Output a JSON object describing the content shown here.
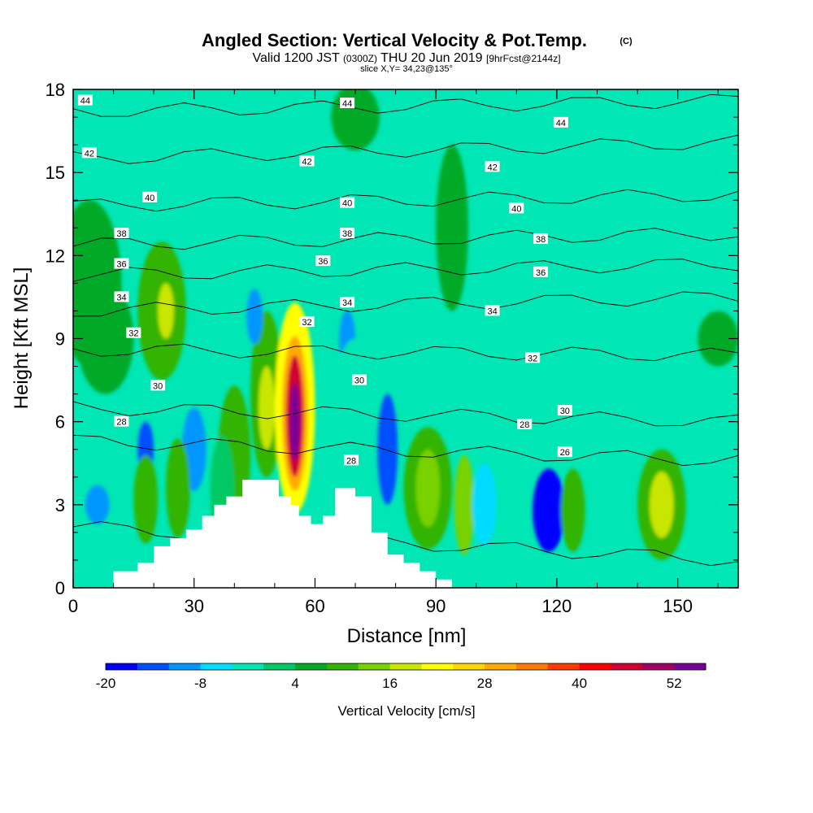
{
  "chart_data": {
    "type": "heatmap",
    "title": "Angled Section: Vertical Velocity & Pot.Temp.",
    "title_tag": "(C)",
    "subtitle_parts": [
      "Valid 1200 JST",
      "(0300Z)",
      "THU 20 Jun 2019",
      "[9hrFcst@2144z]"
    ],
    "slice_text": "slice X,Y= 34,23@135°",
    "xlabel": "Distance [nm]",
    "ylabel": "Height [Kft MSL]",
    "xlim": [
      0,
      165
    ],
    "ylim": [
      0,
      18
    ],
    "x_ticks": [
      0,
      30,
      60,
      90,
      120,
      150
    ],
    "y_ticks": [
      0,
      3,
      6,
      9,
      12,
      15,
      18
    ],
    "background_color": "#00e6b4",
    "colorbar": {
      "label": "Vertical Velocity [cm/s]",
      "tick_labels": [
        "-20",
        "-8",
        "4",
        "16",
        "28",
        "40",
        "52"
      ],
      "tick_values": [
        -20,
        -8,
        4,
        16,
        28,
        40,
        52
      ],
      "colors": [
        "#0000ff",
        "#0050ff",
        "#0096ff",
        "#00dcff",
        "#00e6b4",
        "#00c864",
        "#00aa28",
        "#32b400",
        "#78d200",
        "#c8e600",
        "#ffff00",
        "#ffd700",
        "#ffaa00",
        "#ff7800",
        "#ff3c00",
        "#ff0000",
        "#d20032",
        "#a00064",
        "#780096"
      ]
    },
    "terrain": [
      {
        "x": 0,
        "top": 0
      },
      {
        "x": 10,
        "top": 0.6
      },
      {
        "x": 16,
        "top": 0.9
      },
      {
        "x": 20,
        "top": 1.5
      },
      {
        "x": 24,
        "top": 1.8
      },
      {
        "x": 28,
        "top": 2.1
      },
      {
        "x": 32,
        "top": 2.6
      },
      {
        "x": 35,
        "top": 3.0
      },
      {
        "x": 38,
        "top": 3.3
      },
      {
        "x": 42,
        "top": 3.9
      },
      {
        "x": 48,
        "top": 3.9
      },
      {
        "x": 51,
        "top": 3.3
      },
      {
        "x": 54,
        "top": 3.0
      },
      {
        "x": 56,
        "top": 2.6
      },
      {
        "x": 59,
        "top": 2.3
      },
      {
        "x": 62,
        "top": 2.6
      },
      {
        "x": 65,
        "top": 3.6
      },
      {
        "x": 70,
        "top": 3.3
      },
      {
        "x": 74,
        "top": 2.0
      },
      {
        "x": 78,
        "top": 1.2
      },
      {
        "x": 82,
        "top": 0.9
      },
      {
        "x": 86,
        "top": 0.6
      },
      {
        "x": 90,
        "top": 0.3
      },
      {
        "x": 94,
        "top": 0
      }
    ],
    "velocity_cells": [
      {
        "x": 4,
        "y": 11,
        "rx": 8,
        "ry": 3,
        "v": 6
      },
      {
        "x": 8,
        "y": 9,
        "rx": 7,
        "ry": 2,
        "v": 4
      },
      {
        "x": 22,
        "y": 10,
        "rx": 6,
        "ry": 2.5,
        "v": 8
      },
      {
        "x": 23,
        "y": 10,
        "rx": 2,
        "ry": 1,
        "v": 16
      },
      {
        "x": 40,
        "y": 4.8,
        "rx": 4,
        "ry": 2.5,
        "v": 8
      },
      {
        "x": 37,
        "y": 3.5,
        "rx": 3,
        "ry": 2,
        "v": 0
      },
      {
        "x": 48,
        "y": 7,
        "rx": 4,
        "ry": 3,
        "v": 8
      },
      {
        "x": 48,
        "y": 6.5,
        "rx": 2,
        "ry": 1.5,
        "v": 16
      },
      {
        "x": 55,
        "y": 6.5,
        "rx": 5,
        "ry": 3.8,
        "v": 20
      },
      {
        "x": 55,
        "y": 6.3,
        "rx": 3.2,
        "ry": 2.8,
        "v": 30
      },
      {
        "x": 55,
        "y": 6.2,
        "rx": 2.2,
        "ry": 2.2,
        "v": 44
      },
      {
        "x": 55,
        "y": 6,
        "rx": 1.2,
        "ry": 1.4,
        "v": 56
      },
      {
        "x": 45,
        "y": 9.8,
        "rx": 2,
        "ry": 1,
        "v": -10
      },
      {
        "x": 68,
        "y": 9,
        "rx": 2,
        "ry": 1,
        "v": -10
      },
      {
        "x": 70,
        "y": 7,
        "rx": 5,
        "ry": 2,
        "v": -4
      },
      {
        "x": 78,
        "y": 5,
        "rx": 2.5,
        "ry": 2,
        "v": -16
      },
      {
        "x": 30,
        "y": 5,
        "rx": 3,
        "ry": 1.5,
        "v": -10
      },
      {
        "x": 18,
        "y": 5,
        "rx": 2,
        "ry": 1,
        "v": -14
      },
      {
        "x": 6,
        "y": 3,
        "rx": 3,
        "ry": 0.7,
        "v": -10
      },
      {
        "x": 18,
        "y": 3.2,
        "rx": 3,
        "ry": 1.6,
        "v": 8
      },
      {
        "x": 26,
        "y": 3.6,
        "rx": 3,
        "ry": 1.8,
        "v": 8
      },
      {
        "x": 88,
        "y": 3.6,
        "rx": 6,
        "ry": 2.2,
        "v": 8
      },
      {
        "x": 88,
        "y": 3.6,
        "rx": 3,
        "ry": 1.4,
        "v": 14
      },
      {
        "x": 97,
        "y": 3,
        "rx": 2.5,
        "ry": 1.8,
        "v": 12
      },
      {
        "x": 102,
        "y": 3,
        "rx": 3,
        "ry": 1.5,
        "v": -6
      },
      {
        "x": 118,
        "y": 2.8,
        "rx": 4,
        "ry": 1.5,
        "v": -18
      },
      {
        "x": 124,
        "y": 2.8,
        "rx": 3,
        "ry": 1.5,
        "v": 8
      },
      {
        "x": 146,
        "y": 3,
        "rx": 6,
        "ry": 2,
        "v": 8
      },
      {
        "x": 146,
        "y": 3,
        "rx": 3,
        "ry": 1.2,
        "v": 16
      },
      {
        "x": 106,
        "y": 5.5,
        "rx": 3,
        "ry": 1,
        "v": -4
      },
      {
        "x": 94,
        "y": 13,
        "rx": 4,
        "ry": 3,
        "v": 4
      },
      {
        "x": 113,
        "y": 8,
        "rx": 4,
        "ry": 1,
        "v": -4
      },
      {
        "x": 70,
        "y": 17,
        "rx": 6,
        "ry": 1.2,
        "v": 4
      },
      {
        "x": 160,
        "y": 9,
        "rx": 5,
        "ry": 1,
        "v": 4
      },
      {
        "x": 35,
        "y": 14,
        "rx": 6,
        "ry": 3,
        "v": -4
      },
      {
        "x": 48,
        "y": 16,
        "rx": 3,
        "ry": 2,
        "v": -4
      }
    ],
    "theta_contours": [
      {
        "label": "28",
        "y0": 2.2,
        "y1": 1.0
      },
      {
        "label": "28",
        "y0": 5.3,
        "y1": 4.6
      },
      {
        "label": "30",
        "y0": 6.5,
        "y1": 6.0
      },
      {
        "label": "32",
        "y0": 8.6,
        "y1": 8.4
      },
      {
        "label": "34",
        "y0": 10.0,
        "y1": 10.5
      },
      {
        "label": "36",
        "y0": 11.3,
        "y1": 11.7
      },
      {
        "label": "38",
        "y0": 12.4,
        "y1": 12.8
      },
      {
        "label": "40",
        "y0": 13.8,
        "y1": 14.2
      },
      {
        "label": "42",
        "y0": 15.5,
        "y1": 16.1
      },
      {
        "label": "44",
        "y0": 17.2,
        "y1": 17.6
      }
    ],
    "theta_contour_labels": [
      {
        "text": "44",
        "x": 3,
        "y": 17.6
      },
      {
        "text": "44",
        "x": 68,
        "y": 17.5
      },
      {
        "text": "44",
        "x": 121,
        "y": 16.8
      },
      {
        "text": "42",
        "x": 4,
        "y": 15.7
      },
      {
        "text": "42",
        "x": 58,
        "y": 15.4
      },
      {
        "text": "42",
        "x": 104,
        "y": 15.2
      },
      {
        "text": "40",
        "x": 19,
        "y": 14.1
      },
      {
        "text": "40",
        "x": 68,
        "y": 13.9
      },
      {
        "text": "40",
        "x": 110,
        "y": 13.7
      },
      {
        "text": "38",
        "x": 12,
        "y": 12.8
      },
      {
        "text": "38",
        "x": 68,
        "y": 12.8
      },
      {
        "text": "38",
        "x": 116,
        "y": 12.6
      },
      {
        "text": "36",
        "x": 12,
        "y": 11.7
      },
      {
        "text": "36",
        "x": 62,
        "y": 11.8
      },
      {
        "text": "36",
        "x": 116,
        "y": 11.4
      },
      {
        "text": "34",
        "x": 12,
        "y": 10.5
      },
      {
        "text": "34",
        "x": 68,
        "y": 10.3
      },
      {
        "text": "34",
        "x": 104,
        "y": 10.0
      },
      {
        "text": "32",
        "x": 15,
        "y": 9.2
      },
      {
        "text": "32",
        "x": 58,
        "y": 9.6
      },
      {
        "text": "32",
        "x": 114,
        "y": 8.3
      },
      {
        "text": "30",
        "x": 21,
        "y": 7.3
      },
      {
        "text": "30",
        "x": 71,
        "y": 7.5
      },
      {
        "text": "30",
        "x": 122,
        "y": 6.4
      },
      {
        "text": "28",
        "x": 12,
        "y": 6.0
      },
      {
        "text": "28",
        "x": 69,
        "y": 4.6
      },
      {
        "text": "28",
        "x": 112,
        "y": 5.9
      },
      {
        "text": "26",
        "x": 122,
        "y": 4.9
      }
    ]
  }
}
